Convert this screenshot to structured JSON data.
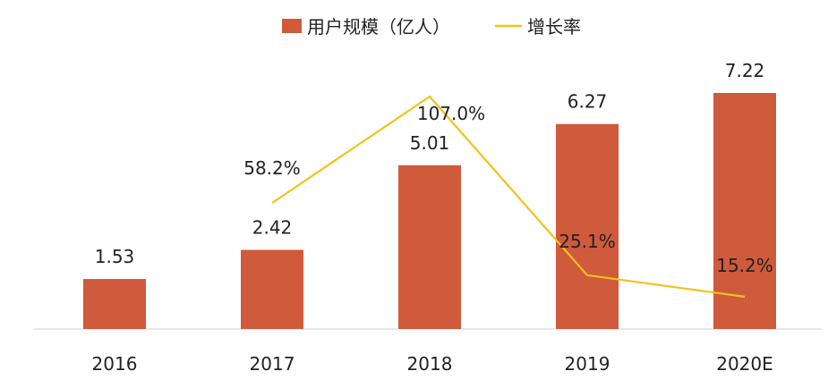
{
  "chart_data": {
    "type": "bar",
    "categories": [
      "2016",
      "2017",
      "2018",
      "2019",
      "2020E"
    ],
    "series": [
      {
        "name": "用户规模（亿人）",
        "type": "bar",
        "axis": "left",
        "values": [
          1.53,
          2.42,
          5.01,
          6.27,
          7.22
        ],
        "labels": [
          "1.53",
          "2.42",
          "5.01",
          "6.27",
          "7.22"
        ],
        "color": "#cf5a3c"
      },
      {
        "name": "增长率",
        "type": "line",
        "axis": "right",
        "values": [
          null,
          58.2,
          107.0,
          25.1,
          15.2
        ],
        "labels": [
          "",
          "58.2%",
          "107.0%",
          "25.1%",
          "15.2%"
        ],
        "color": "#f2c21a"
      }
    ],
    "ylim": [
      0,
      8
    ],
    "y2lim": [
      0,
      120
    ],
    "legend": "top-center",
    "grid": false
  }
}
